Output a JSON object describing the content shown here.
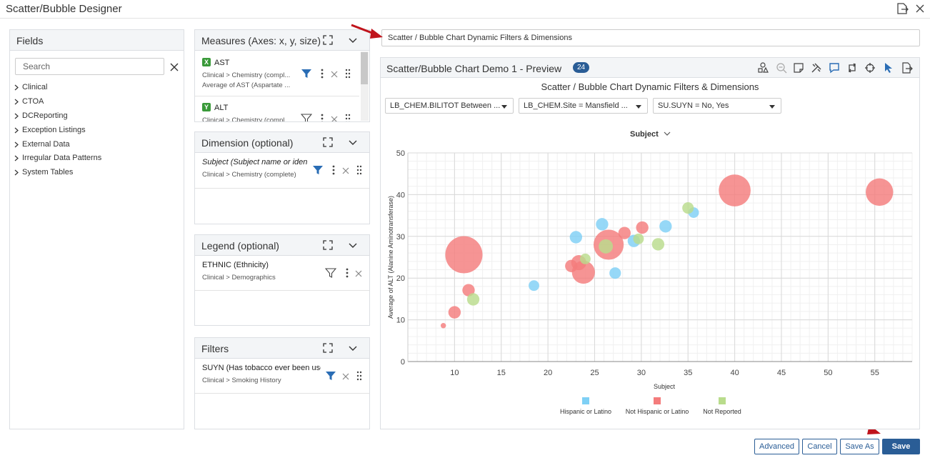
{
  "window": {
    "title": "Scatter/Bubble Designer"
  },
  "fields": {
    "title": "Fields",
    "search_placeholder": "Search",
    "items": [
      "Clinical",
      "CTOA",
      "DCReporting",
      "Exception Listings",
      "External Data",
      "Irregular Data Patterns",
      "System Tables"
    ]
  },
  "measures": {
    "title": "Measures (Axes: x, y, size)",
    "items": [
      {
        "badge": "X",
        "name": "AST",
        "path": "Clinical > Chemistry (compl...",
        "desc": "Average of AST (Aspartate ..."
      },
      {
        "badge": "Y",
        "name": "ALT",
        "path": "Clinical > Chemistry (compl..."
      }
    ]
  },
  "dimension": {
    "title": "Dimension (optional)",
    "name": "Subject (Subject name or identi",
    "path": "Clinical > Chemistry (complete)"
  },
  "legend_panel": {
    "title": "Legend (optional)",
    "name": "ETHNIC (Ethnicity)",
    "path": "Clinical > Demographics"
  },
  "filters": {
    "title": "Filters",
    "name": "SUYN (Has tobacco ever been use",
    "path": "Clinical > Smoking History"
  },
  "chart_title_input": "Scatter / Bubble Chart Dynamic Filters & Dimensions",
  "preview": {
    "title": "Scatter/Bubble Chart Demo 1 - Preview",
    "count": "24",
    "chart_heading": "Scatter / Bubble Chart Dynamic Filters & Dimensions",
    "dropdowns": [
      "LB_CHEM.BILITOT Between ...",
      "LB_CHEM.Site = Mansfield ...",
      "SU.SUYN = No, Yes"
    ],
    "dimension_selector": "Subject"
  },
  "colors": {
    "accent": "#2a5d96",
    "hispanic": "#7fd0f5",
    "not_hispanic": "#f47c7c",
    "not_reported": "#b9dc8c"
  },
  "chart_data": {
    "type": "scatter",
    "xlabel": "Subject",
    "ylabel": "Average of ALT (Alanine Aminotransferase)",
    "xlim": [
      5,
      59
    ],
    "ylim": [
      0,
      50
    ],
    "xticks": [
      10,
      15,
      20,
      25,
      30,
      35,
      40,
      45,
      50,
      55
    ],
    "yticks": [
      0,
      10,
      20,
      30,
      40,
      50
    ],
    "grid": true,
    "legend_position": "bottom",
    "series": [
      {
        "name": "Hispanic or Latino",
        "color": "#7fd0f5",
        "points": [
          [
            18.5,
            18.2,
            1.2
          ],
          [
            23.0,
            29.8,
            1.4
          ],
          [
            25.8,
            32.9,
            1.4
          ],
          [
            27.2,
            21.2,
            1.3
          ],
          [
            29.2,
            28.9,
            1.4
          ],
          [
            32.6,
            32.4,
            1.4
          ],
          [
            35.6,
            35.7,
            1.2
          ]
        ]
      },
      {
        "name": "Not Hispanic or Latino",
        "color": "#f47c7c",
        "points": [
          [
            8.8,
            8.6,
            0.6
          ],
          [
            10.0,
            11.8,
            1.4
          ],
          [
            11.0,
            25.6,
            4.2
          ],
          [
            11.5,
            17.1,
            1.4
          ],
          [
            22.5,
            22.9,
            1.4
          ],
          [
            23.3,
            23.7,
            1.7
          ],
          [
            23.8,
            21.4,
            2.6
          ],
          [
            26.5,
            28.0,
            3.4
          ],
          [
            28.2,
            30.8,
            1.4
          ],
          [
            30.1,
            32.1,
            1.4
          ],
          [
            40.0,
            41.0,
            3.6
          ],
          [
            55.5,
            40.6,
            3.1
          ]
        ]
      },
      {
        "name": "Not Reported",
        "color": "#b9dc8c",
        "points": [
          [
            12.0,
            14.9,
            1.4
          ],
          [
            24.0,
            24.6,
            1.2
          ],
          [
            26.2,
            27.6,
            1.6
          ],
          [
            29.7,
            29.4,
            1.2
          ],
          [
            31.8,
            28.1,
            1.4
          ],
          [
            35.0,
            36.8,
            1.3
          ]
        ]
      }
    ]
  },
  "buttons": {
    "advanced": "Advanced",
    "cancel": "Cancel",
    "save_as": "Save As",
    "save": "Save"
  }
}
